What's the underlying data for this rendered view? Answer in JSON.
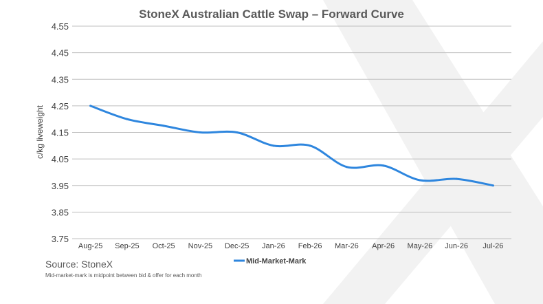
{
  "chart_data": {
    "type": "line",
    "title": "StoneX Australian Cattle Swap – Forward Curve",
    "ylabel": "c/kg liveweight",
    "xlabel": "",
    "ylim": [
      3.75,
      4.55
    ],
    "yticks": [
      "4.55",
      "4.45",
      "4.35",
      "4.25",
      "4.15",
      "4.05",
      "3.95",
      "3.85",
      "3.75"
    ],
    "ytick_values": [
      4.55,
      4.45,
      4.35,
      4.25,
      4.15,
      4.05,
      3.95,
      3.85,
      3.75
    ],
    "categories": [
      "Aug-25",
      "Sep-25",
      "Oct-25",
      "Nov-25",
      "Dec-25",
      "Jan-26",
      "Feb-26",
      "Mar-26",
      "Apr-26",
      "May-26",
      "Jun-26",
      "Jul-26"
    ],
    "series": [
      {
        "name": "Mid-Market-Mark",
        "color": "#2e86de",
        "values": [
          4.25,
          4.2,
          4.175,
          4.15,
          4.15,
          4.1,
          4.1,
          4.02,
          4.025,
          3.97,
          3.975,
          3.95
        ]
      }
    ],
    "grid": true,
    "legend_position": "bottom-center",
    "source": "Source: StoneX",
    "footnote": "Mid-market-mark is midpoint between bid & offer for each month",
    "colors": {
      "line": "#2e86de",
      "grid": "#bfbfbf",
      "text": "#595959",
      "title": "#595959",
      "watermark": "#f0f0f0"
    }
  }
}
